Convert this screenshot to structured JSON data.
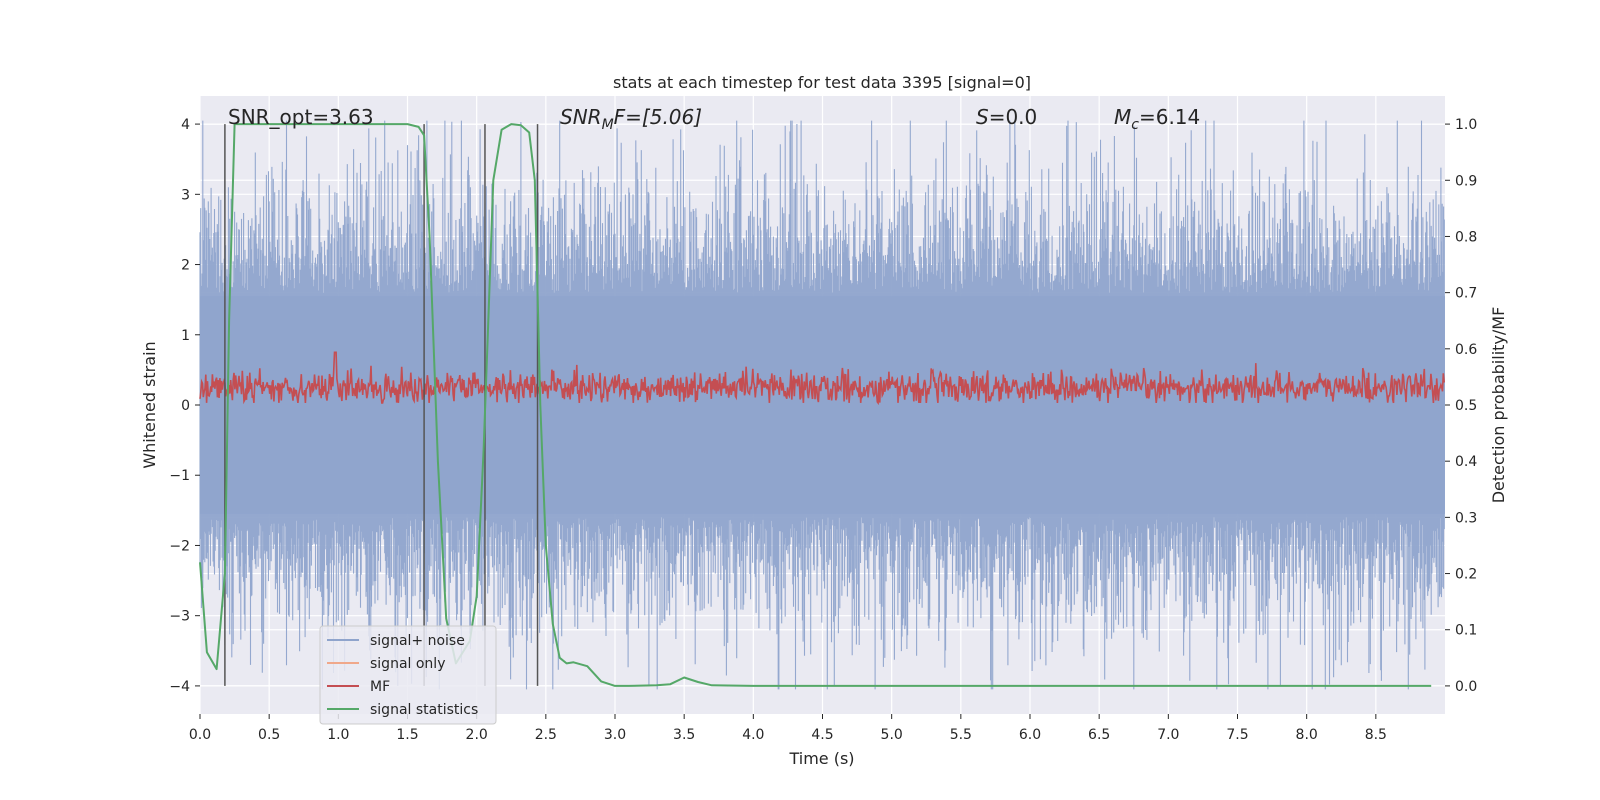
{
  "chart_data": {
    "type": "line",
    "title": "stats at each timestep for test data 3395 [signal=0]",
    "xlabel": "Time (s)",
    "ylabel_left": "Whitened strain",
    "ylabel_right": "Detection probability/MF",
    "xlim": [
      0.0,
      9.0
    ],
    "ylim_left": [
      -4.4,
      4.4
    ],
    "ylim_right": [
      -0.05,
      1.05
    ],
    "xticks": [
      "0.0",
      "0.5",
      "1.0",
      "1.5",
      "2.0",
      "2.5",
      "3.0",
      "3.5",
      "4.0",
      "4.5",
      "5.0",
      "5.5",
      "6.0",
      "6.5",
      "7.0",
      "7.5",
      "8.0",
      "8.5"
    ],
    "yticks_left": [
      "4",
      "3",
      "2",
      "1",
      "0",
      "−1",
      "−2",
      "−3",
      "−4"
    ],
    "yticks_right": [
      "1.0",
      "0.9",
      "0.8",
      "0.7",
      "0.6",
      "0.5",
      "0.4",
      "0.3",
      "0.2",
      "0.1",
      "0.0"
    ],
    "annotations": {
      "snr_opt": "SNR_opt=3.63",
      "snr_mf_italic": "SNR",
      "snr_mf_sub": "M",
      "snr_mf_rest": "F=[5.06]",
      "s_italic": "S",
      "s_rest": "=0.0",
      "mc_italic": "M",
      "mc_sub": "c",
      "mc_rest": "=6.14"
    },
    "vertical_lines_s": [
      0.18,
      1.62,
      2.06,
      2.44
    ],
    "series": [
      {
        "name": "signal+ noise",
        "color": "#8fa4cc",
        "axis": "left",
        "style": "dense noise, amplitude ~±4"
      },
      {
        "name": "signal only",
        "color": "#f0a88a",
        "axis": "left",
        "values": []
      },
      {
        "name": "MF",
        "color": "#c44e52",
        "axis": "left",
        "style": "dense noise around 0.25, amplitude ~0.4"
      },
      {
        "name": "signal statistics",
        "color": "#55a868",
        "axis": "right",
        "x": [
          0.0,
          0.05,
          0.12,
          0.18,
          0.21,
          0.25,
          0.3,
          0.5,
          1.0,
          1.5,
          1.58,
          1.62,
          1.66,
          1.72,
          1.78,
          1.85,
          1.95,
          2.0,
          2.05,
          2.08,
          2.12,
          2.18,
          2.25,
          2.32,
          2.38,
          2.42,
          2.46,
          2.5,
          2.55,
          2.6,
          2.65,
          2.7,
          2.8,
          2.9,
          3.0,
          3.1,
          3.3,
          3.4,
          3.5,
          3.6,
          3.7,
          4.0,
          5.0,
          6.0,
          7.0,
          8.0,
          8.9
        ],
        "values": [
          0.22,
          0.06,
          0.03,
          0.2,
          0.65,
          1.0,
          1.0,
          1.0,
          1.0,
          1.0,
          0.995,
          0.98,
          0.8,
          0.4,
          0.12,
          0.04,
          0.08,
          0.16,
          0.42,
          0.62,
          0.9,
          0.99,
          1.0,
          0.998,
          0.985,
          0.9,
          0.5,
          0.25,
          0.11,
          0.05,
          0.04,
          0.042,
          0.035,
          0.008,
          0.0,
          0.0,
          0.001,
          0.003,
          0.015,
          0.007,
          0.001,
          0.0,
          0.0,
          0.0,
          0.0,
          0.0,
          0.0
        ]
      }
    ],
    "legend": {
      "location": "lower-left",
      "entries": [
        {
          "label": "signal+ noise",
          "color": "#8fa4cc"
        },
        {
          "label": "signal only",
          "color": "#f0a88a"
        },
        {
          "label": "MF",
          "color": "#c44e52"
        },
        {
          "label": "signal statistics",
          "color": "#55a868"
        }
      ]
    }
  }
}
